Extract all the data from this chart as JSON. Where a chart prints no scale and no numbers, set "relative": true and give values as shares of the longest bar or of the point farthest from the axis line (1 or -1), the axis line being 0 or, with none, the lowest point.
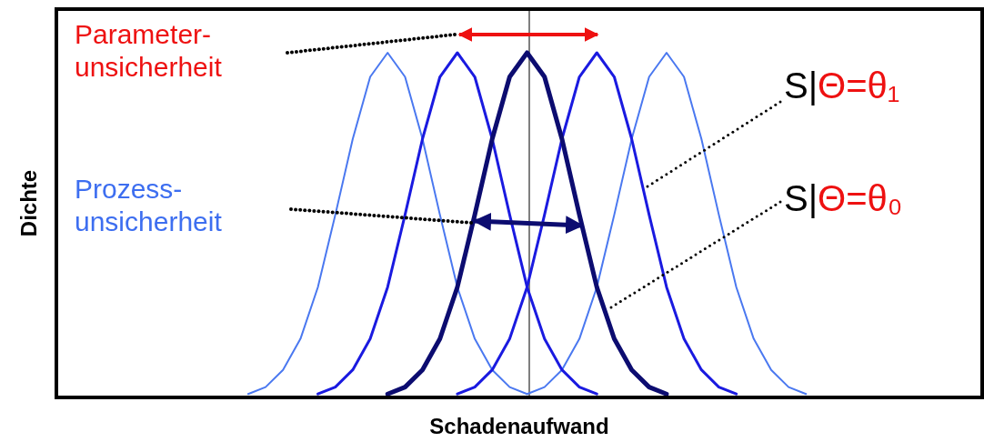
{
  "chart_data": {
    "type": "line",
    "relative": true,
    "xlabel": "Schadenaufwand",
    "ylabel": "Dichte",
    "marker": "none",
    "line_style": "solid",
    "categories": [
      null,
      null,
      null,
      null,
      null,
      null,
      null,
      null,
      null,
      null,
      null,
      null,
      null,
      null,
      null,
      null,
      null,
      null,
      null,
      null,
      null,
      null,
      null,
      null,
      null,
      null,
      null,
      null,
      null,
      null,
      null,
      null,
      null,
      null,
      null,
      null,
      null,
      null,
      null,
      null,
      null,
      null,
      null,
      null,
      null,
      null,
      null,
      null,
      null,
      null,
      null,
      null,
      null,
      null
    ],
    "series": [
      {
        "color": "#4a78f0",
        "values": [
          null,
          null,
          null,
          null,
          null,
          null,
          null,
          null,
          null,
          null,
          null,
          0.01,
          0.03,
          0.08,
          0.17,
          0.32,
          0.53,
          0.75,
          0.93,
          1,
          0.93,
          0.75,
          0.53,
          0.32,
          0.17,
          0.08,
          0.03,
          0.01,
          null,
          null,
          null,
          null,
          null,
          null,
          null,
          null,
          null,
          null,
          null,
          null,
          null,
          null,
          null,
          null,
          null,
          null,
          null,
          null,
          null,
          null,
          null,
          null,
          null,
          null
        ]
      },
      {
        "color": "#4a78f0",
        "values": [
          null,
          null,
          null,
          null,
          null,
          null,
          null,
          null,
          null,
          null,
          null,
          null,
          null,
          null,
          null,
          null,
          null,
          null,
          null,
          null,
          null,
          null,
          null,
          null,
          null,
          null,
          null,
          0.01,
          0.03,
          0.08,
          0.17,
          0.32,
          0.53,
          0.75,
          0.93,
          1,
          0.93,
          0.75,
          0.53,
          0.32,
          0.17,
          0.08,
          0.03,
          0.01,
          null,
          null,
          null,
          null,
          null,
          null,
          null,
          null,
          null,
          null
        ]
      },
      {
        "color": "#1a1ae0",
        "values": [
          null,
          null,
          null,
          null,
          null,
          null,
          null,
          null,
          null,
          null,
          null,
          null,
          null,
          null,
          null,
          0.01,
          0.03,
          0.08,
          0.17,
          0.32,
          0.53,
          0.75,
          0.93,
          1,
          0.93,
          0.75,
          0.53,
          0.32,
          0.17,
          0.08,
          0.03,
          0.01,
          null,
          null,
          null,
          null,
          null,
          null,
          null,
          null,
          null,
          null,
          null,
          null,
          null,
          null,
          null,
          null,
          null,
          null,
          null,
          null,
          null,
          null
        ]
      },
      {
        "color": "#1a1ae0",
        "values": [
          null,
          null,
          null,
          null,
          null,
          null,
          null,
          null,
          null,
          null,
          null,
          null,
          null,
          null,
          null,
          null,
          null,
          null,
          null,
          null,
          null,
          null,
          null,
          0.01,
          0.03,
          0.08,
          0.17,
          0.32,
          0.53,
          0.75,
          0.93,
          1,
          0.93,
          0.75,
          0.53,
          0.32,
          0.17,
          0.08,
          0.03,
          0.01,
          null,
          null,
          null,
          null,
          null,
          null,
          null,
          null,
          null,
          null,
          null,
          null,
          null,
          null
        ]
      },
      {
        "color": "#0c0c70",
        "values": [
          null,
          null,
          null,
          null,
          null,
          null,
          null,
          null,
          null,
          null,
          null,
          null,
          null,
          null,
          null,
          null,
          null,
          null,
          null,
          0.01,
          0.03,
          0.08,
          0.17,
          0.32,
          0.53,
          0.75,
          0.93,
          1,
          0.93,
          0.75,
          0.53,
          0.32,
          0.17,
          0.08,
          0.03,
          0.01,
          null,
          null,
          null,
          null,
          null,
          null,
          null,
          null,
          null,
          null,
          null,
          null,
          null,
          null,
          null,
          null,
          null,
          null
        ]
      }
    ],
    "annotations": [
      "Parameter-\nunsicherheit",
      "Prozess-\nunsicherheit",
      "S|Θ=θ₁",
      "S|Θ=θ₀"
    ]
  }
}
